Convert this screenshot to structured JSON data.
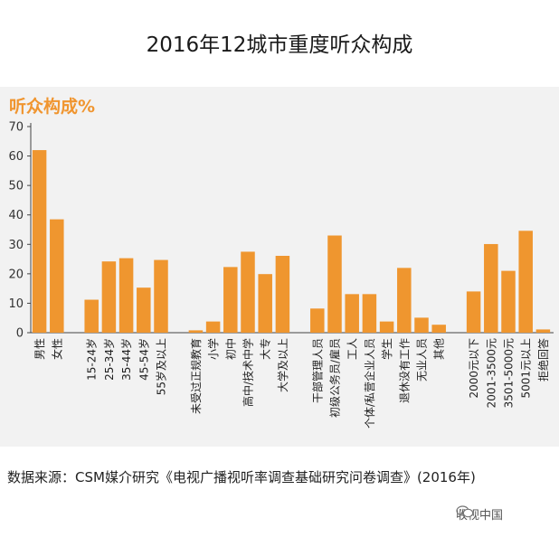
{
  "title": "2016年12城市重度听众构成",
  "source": "数据来源：CSM媒介研究《电视广播视听率调查基础研究问卷调查》(2016年)",
  "brand": "收视中国",
  "brand_icon": "wechat-icon",
  "colors": {
    "bar": "#ef962f",
    "subtitle": "#f0952f",
    "panel": "#f2f2f2"
  },
  "chart_data": {
    "type": "bar",
    "title": "",
    "subtitle": "听众构成%",
    "xlabel": "",
    "ylabel": "",
    "ylim": [
      0,
      70
    ],
    "yticks": [
      0,
      10,
      20,
      30,
      40,
      50,
      60,
      70
    ],
    "grid": false,
    "legend": "none",
    "groups": [
      {
        "categories": [
          "男性",
          "女性"
        ],
        "values": [
          62,
          38.5
        ]
      },
      {
        "categories": [
          "15-24岁",
          "25-34岁",
          "35-44岁",
          "45-54岁",
          "55岁及以上"
        ],
        "values": [
          11.2,
          24.2,
          25.3,
          15.3,
          24.7
        ]
      },
      {
        "categories": [
          "未受过正规教育",
          "小学",
          "初中",
          "高中/技术中学",
          "大专",
          "大学及以上"
        ],
        "values": [
          0.8,
          3.8,
          22.3,
          27.5,
          19.9,
          26.1
        ]
      },
      {
        "categories": [
          "干部管理人员",
          "初级公务员/雇员",
          "工人",
          "个体/私营企业人员",
          "学生",
          "退休没有工作",
          "无业人员",
          "其他"
        ],
        "values": [
          8.2,
          33,
          13.1,
          13.1,
          3.8,
          22,
          5.1,
          2.7
        ]
      },
      {
        "categories": [
          "2000元以下",
          "2001-3500元",
          "3501-5000元",
          "5001元以上",
          "拒绝回答"
        ],
        "values": [
          14,
          30.1,
          21,
          34.6,
          1.1
        ]
      }
    ]
  }
}
